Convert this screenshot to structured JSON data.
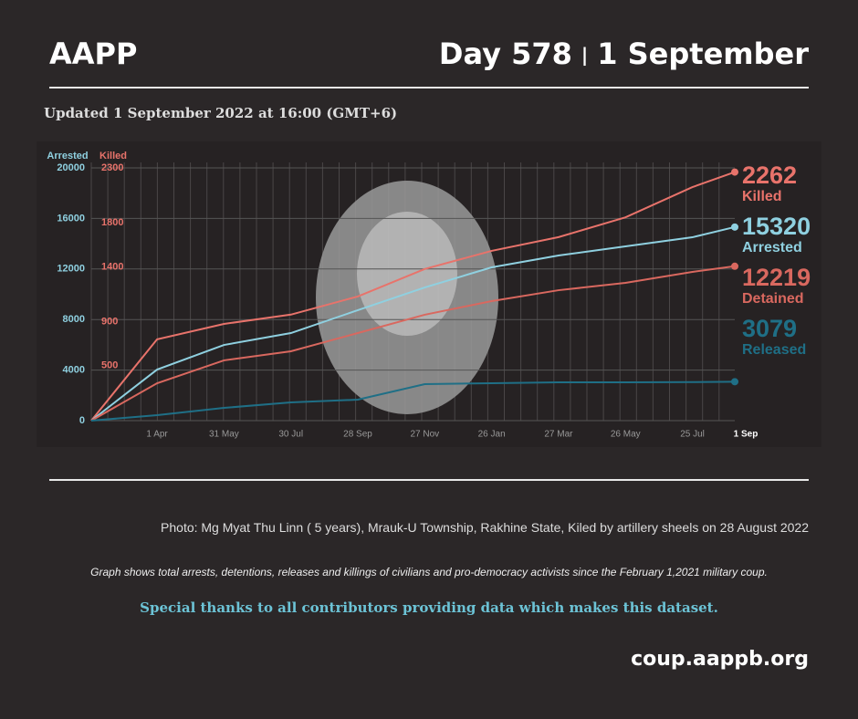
{
  "header": {
    "org": "AAPP",
    "day": "Day 578",
    "date": "1 September"
  },
  "updated": "Updated 1 September 2022 at 16:00 (GMT+6)",
  "chart_data": {
    "type": "line",
    "ylabel": "Arrested",
    "y2label": "Killed",
    "categories": [
      null,
      "1 Apr",
      "31 May",
      "30 Jul",
      "28 Sep",
      "27 Nov",
      "26 Jan",
      "27 Mar",
      "26 May",
      "25 Jul",
      "1 Sep"
    ],
    "ylim": [
      0,
      20000
    ],
    "yticks": [
      0,
      4000,
      8000,
      12000,
      16000,
      20000
    ],
    "y2lim": [
      0,
      2300
    ],
    "y2ticks": [
      500,
      900,
      1400,
      1800,
      2300
    ],
    "grid": true,
    "series": [
      {
        "name": "Killed",
        "color": "#e8736b",
        "axis": "y2",
        "values": [
          0,
          740,
          880,
          965,
          1130,
          1380,
          1545,
          1670,
          1850,
          2125,
          2262
        ]
      },
      {
        "name": "Arrested",
        "color": "#8fd0e0",
        "values": [
          0,
          4040,
          5990,
          6930,
          8740,
          10540,
          12130,
          13070,
          13790,
          14510,
          15320
        ]
      },
      {
        "name": "Detained",
        "color": "#d9685f",
        "values": [
          0,
          2960,
          4770,
          5490,
          6930,
          8380,
          9460,
          10320,
          10900,
          11770,
          12219
        ]
      },
      {
        "name": "Released",
        "color": "#1f6f86",
        "values": [
          0,
          430,
          1010,
          1440,
          1660,
          2890,
          2960,
          3030,
          3030,
          3050,
          3079
        ]
      }
    ]
  },
  "caption": "Photo: Mg Myat Thu Linn ( 5 years), Mrauk-U Township, Rakhine State, Kiled by artillery sheels on 28 August 2022",
  "note": "Graph shows total arrests, detentions, releases and killings of civilians and pro-democracy activists since the February 1,2021 military coup.",
  "thanks": "Special thanks to all contributors providing data which makes this dataset.",
  "url": "coup.aappb.org"
}
